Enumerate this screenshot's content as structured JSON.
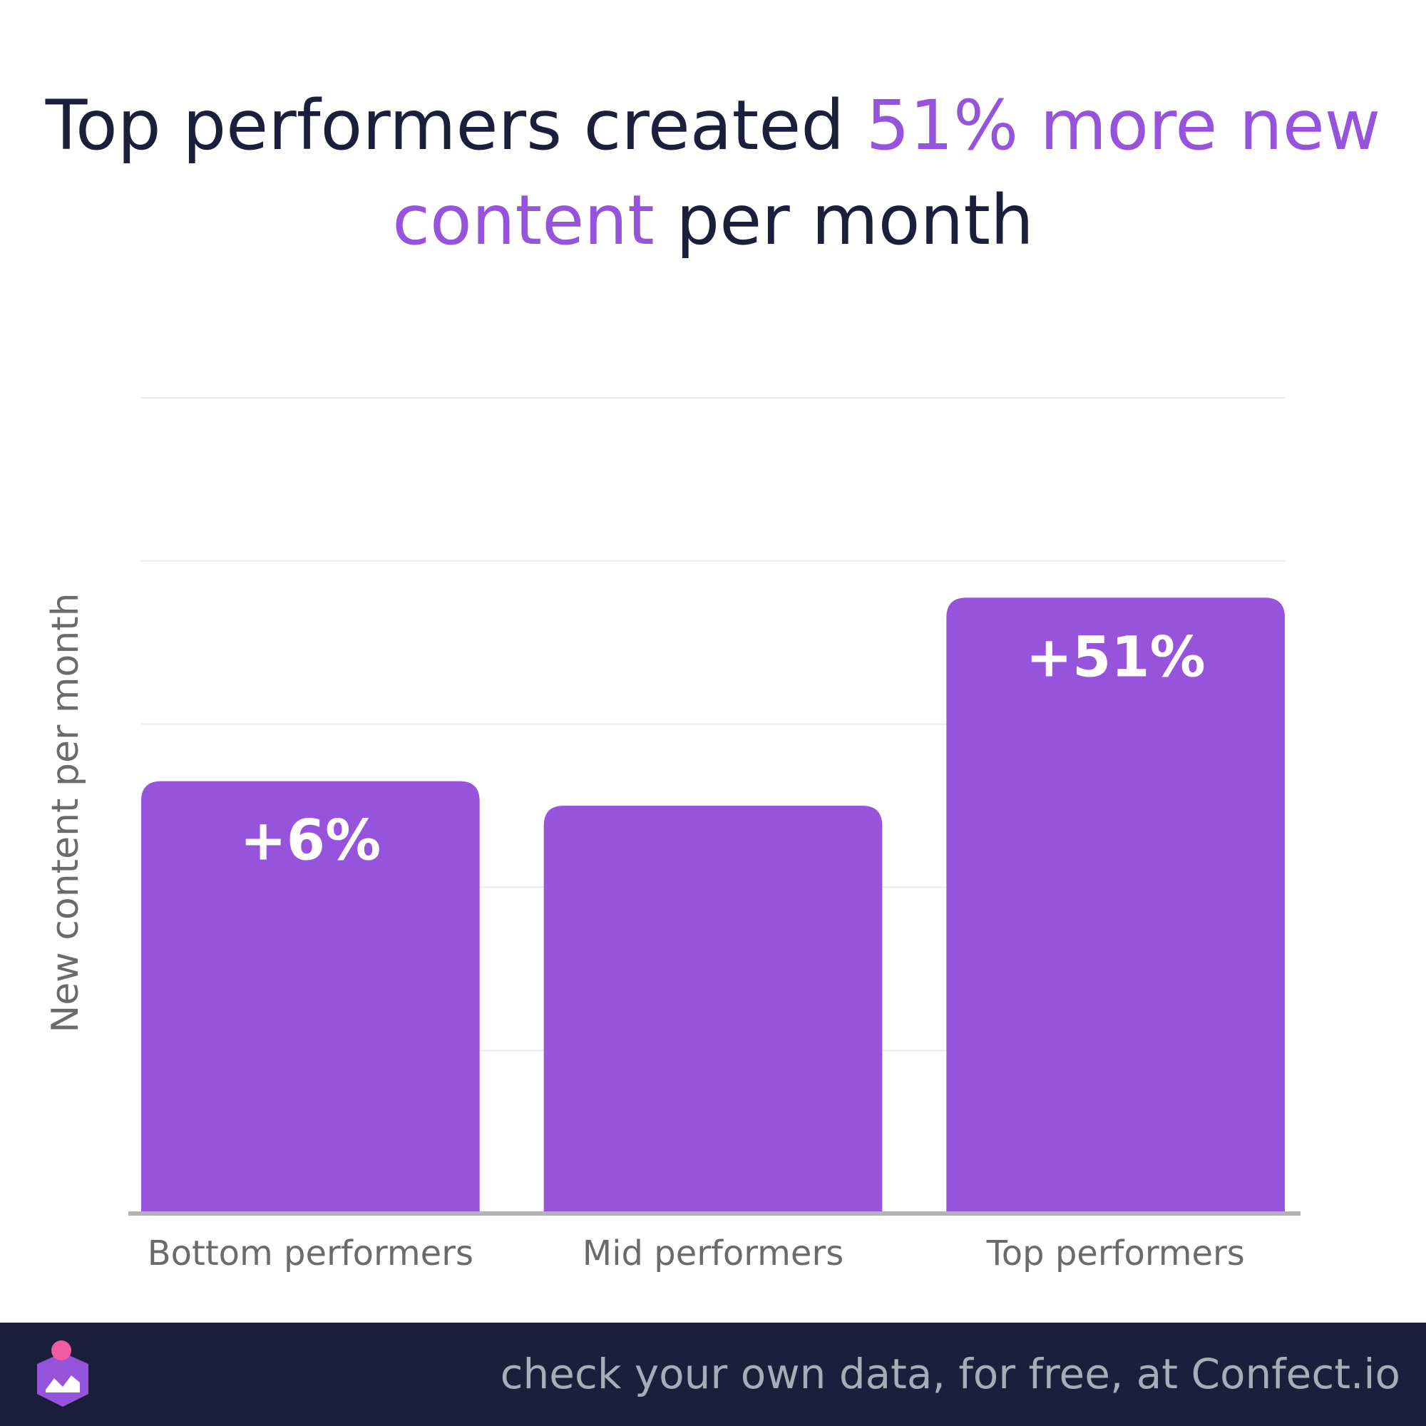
{
  "title": {
    "part1": "Top performers created ",
    "highlight1": "51% more new",
    "highlight2": "content",
    "part2": " per month"
  },
  "colors": {
    "bar": "#9653dc",
    "title_text": "#1c1f3c",
    "highlight": "#9653dc",
    "footer_bg": "#1c1f3c",
    "footer_text": "#a9abb9",
    "axis_text": "#6b6b6b",
    "gridline": "#ebebeb",
    "baseline": "#b3b3b3"
  },
  "chart_data": {
    "type": "bar",
    "categories": [
      "Bottom performers",
      "Mid performers",
      "Top performers"
    ],
    "values": [
      1.06,
      1.0,
      1.51
    ],
    "data_labels": [
      "+6%",
      "",
      "+51%"
    ],
    "ylabel": "New content per month",
    "xlabel": "",
    "ylim": [
      0,
      2.0
    ],
    "grid": true
  },
  "footer": {
    "text": "check your own data, for free, at Confect.io",
    "logo_icon": "confect-logo-icon"
  }
}
